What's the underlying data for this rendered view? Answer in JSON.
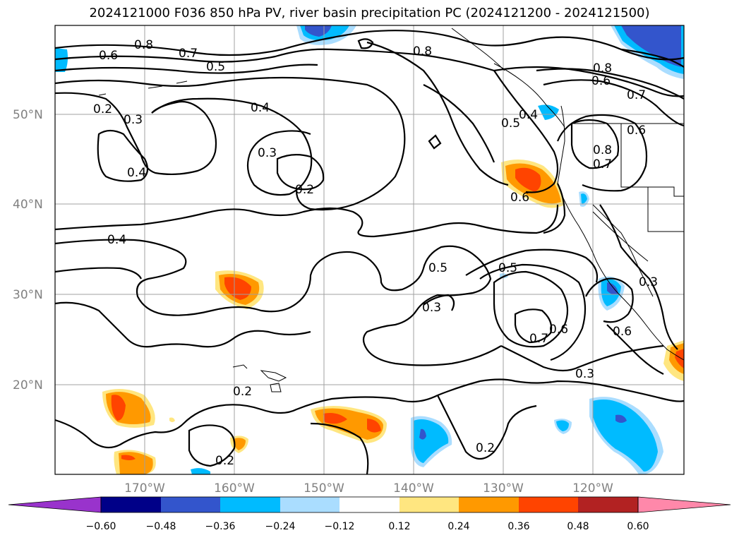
{
  "title": "2024121000 F036 850 hPa PV, river basin precipitation PC (2024121200 - 2024121500)",
  "latitude_labels": [
    "50°N",
    "40°N",
    "30°N",
    "20°N"
  ],
  "longitude_labels": [
    "170°W",
    "160°W",
    "150°W",
    "140°W",
    "130°W",
    "120°W"
  ],
  "contour_labels": [
    "0.8",
    "0.7",
    "0.6",
    "0.5",
    "0.4",
    "0.3",
    "0.2",
    "0.8",
    "0.6",
    "0.5",
    "0.4",
    "0.3",
    "0.2",
    "0.4",
    "0.5",
    "0.5",
    "0.3",
    "0.6",
    "0.7",
    "0.6",
    "0.3",
    "0.2",
    "0.2",
    "0.2",
    "0.8",
    "0.7",
    "0.6",
    "0.8",
    "0.7",
    "0.6",
    "0.4",
    "0.3"
  ],
  "colorbar": {
    "tick_labels": [
      "−0.60",
      "−0.48",
      "−0.36",
      "−0.24",
      "−0.12",
      "0.12",
      "0.24",
      "0.36",
      "0.48",
      "0.60"
    ],
    "colors": [
      "#9933cc",
      "#000088",
      "#3355cc",
      "#00bbff",
      "#aaddff",
      "#ffffff",
      "#ffe680",
      "#ff9900",
      "#ff4400",
      "#b22222",
      "#ff88aa"
    ]
  },
  "colors": {
    "positive_light": "#ffe680",
    "positive_mid": "#ff9900",
    "positive_strong": "#ff4400",
    "negative_light": "#aaddff",
    "negative_mid": "#00bbff",
    "negative_strong": "#3355cc",
    "grid": "#a0a0a0",
    "contour": "#000000"
  }
}
